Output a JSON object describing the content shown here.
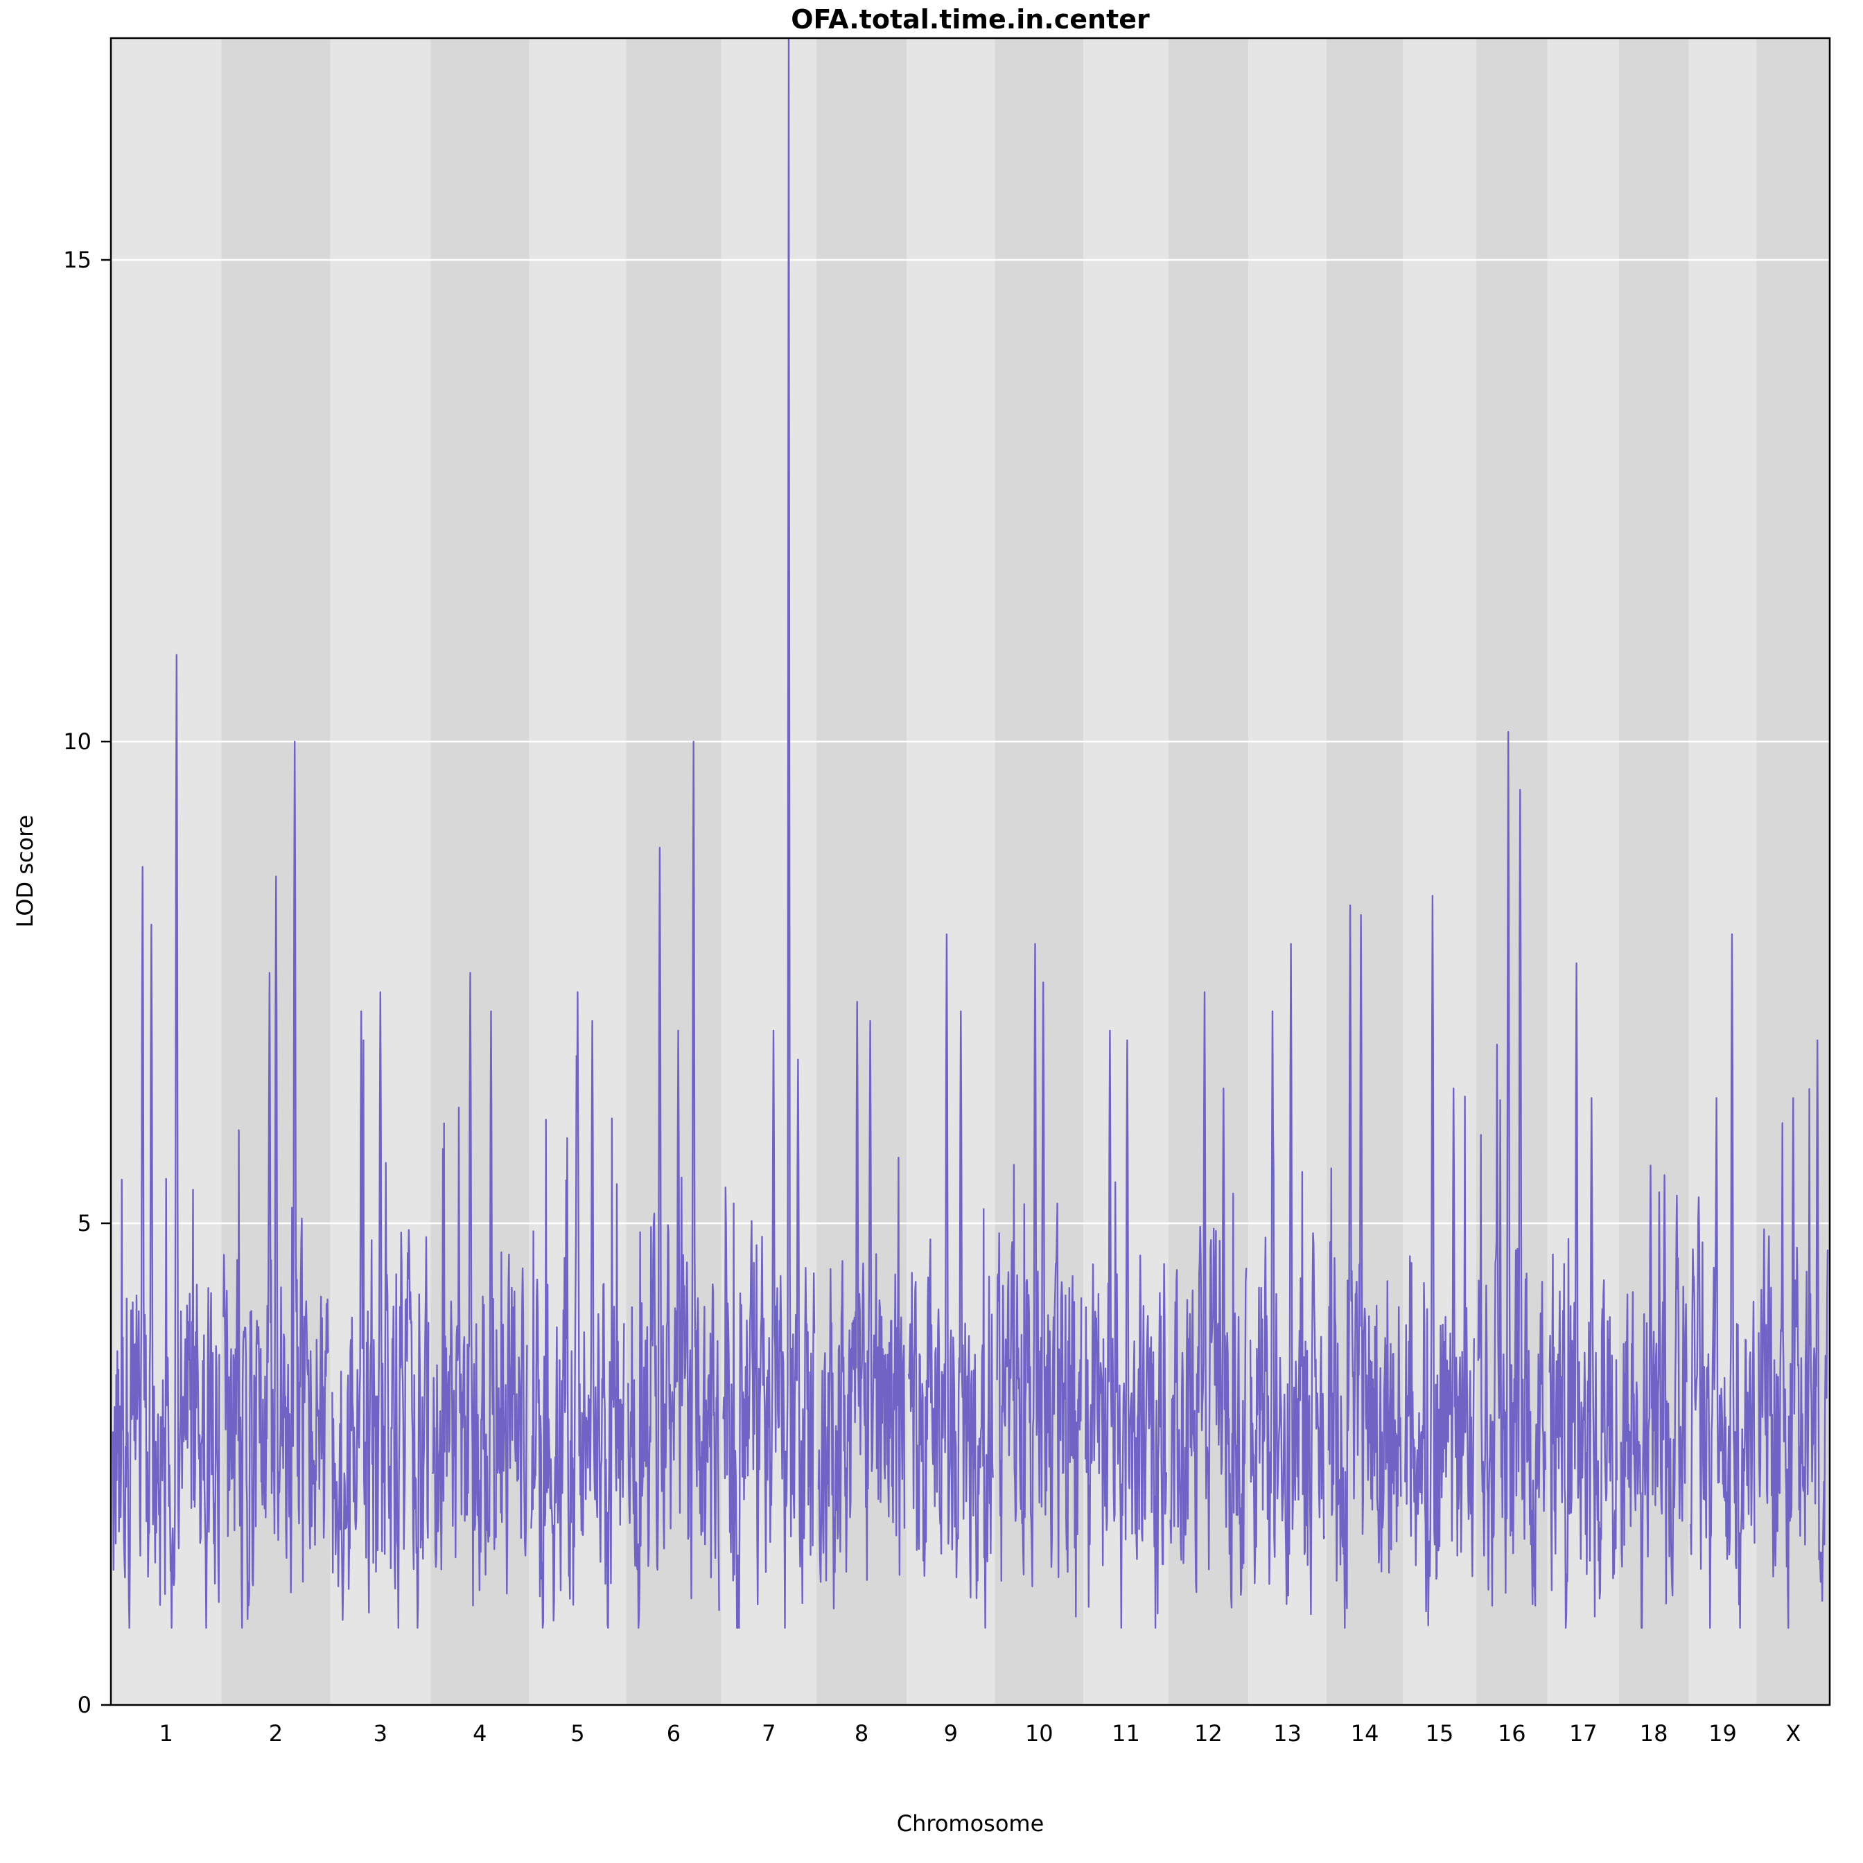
{
  "chart_data": {
    "type": "line",
    "title": "OFA.total.time.in.center",
    "xlabel": "Chromosome",
    "ylabel": "LOD score",
    "ylim": [
      0,
      17.3
    ],
    "yticks": [
      0,
      5,
      10,
      15
    ],
    "grid": "horizontal-white-lines",
    "legend": "none",
    "line_color": "#6f64c5",
    "band_colors": [
      "#e5e5e5",
      "#d8d8d8"
    ],
    "gridline_color": "#ffffff",
    "plot_background": "alternating gray bands per chromosome",
    "x_categories": [
      "1",
      "2",
      "3",
      "4",
      "5",
      "6",
      "7",
      "8",
      "9",
      "10",
      "11",
      "12",
      "13",
      "14",
      "15",
      "16",
      "17",
      "18",
      "19",
      "X"
    ],
    "baseline_noise": {
      "typical_min": 1.0,
      "typical_max": 5.5,
      "description": "dense noisy LOD trace oscillating roughly between 1 and 5.5 across all chromosomes"
    },
    "notable_peaks": [
      {
        "chr": "7",
        "lod": 17.3
      },
      {
        "chr": "1",
        "lod": 10.9
      },
      {
        "chr": "16",
        "lod": 10.1
      },
      {
        "chr": "2",
        "lod": 10.0
      },
      {
        "chr": "6",
        "lod": 10.0
      },
      {
        "chr": "16",
        "lod": 9.5
      }
    ],
    "chromosomes": [
      {
        "label": "1",
        "rel_width": 1.3,
        "seed": 101,
        "peaks": [
          {
            "pos": 0.6,
            "lod": 10.9
          },
          {
            "pos": 0.28,
            "lod": 8.7
          },
          {
            "pos": 0.36,
            "lod": 8.1
          }
        ]
      },
      {
        "label": "2",
        "rel_width": 1.28,
        "seed": 102,
        "peaks": [
          {
            "pos": 0.68,
            "lod": 10.0
          },
          {
            "pos": 0.5,
            "lod": 8.6
          },
          {
            "pos": 0.44,
            "lod": 7.6
          }
        ]
      },
      {
        "label": "3",
        "rel_width": 1.18,
        "seed": 103,
        "peaks": [
          {
            "pos": 0.5,
            "lod": 7.4
          },
          {
            "pos": 0.3,
            "lod": 7.2
          }
        ]
      },
      {
        "label": "4",
        "rel_width": 1.16,
        "seed": 104,
        "peaks": [
          {
            "pos": 0.4,
            "lod": 7.6
          },
          {
            "pos": 0.62,
            "lod": 7.2
          }
        ]
      },
      {
        "label": "5",
        "rel_width": 1.14,
        "seed": 105,
        "peaks": [
          {
            "pos": 0.5,
            "lod": 7.4
          },
          {
            "pos": 0.66,
            "lod": 7.1
          }
        ]
      },
      {
        "label": "6",
        "rel_width": 1.12,
        "seed": 106,
        "peaks": [
          {
            "pos": 0.72,
            "lod": 10.0
          },
          {
            "pos": 0.35,
            "lod": 8.9
          },
          {
            "pos": 0.55,
            "lod": 7.0
          }
        ]
      },
      {
        "label": "7",
        "rel_width": 1.12,
        "seed": 107,
        "peaks": [
          {
            "pos": 0.72,
            "lod": 17.3
          },
          {
            "pos": 0.55,
            "lod": 7.0
          },
          {
            "pos": 0.82,
            "lod": 6.7
          }
        ]
      },
      {
        "label": "8",
        "rel_width": 1.06,
        "seed": 108,
        "peaks": [
          {
            "pos": 0.45,
            "lod": 7.3
          },
          {
            "pos": 0.6,
            "lod": 7.1
          }
        ]
      },
      {
        "label": "9",
        "rel_width": 1.04,
        "seed": 109,
        "peaks": [
          {
            "pos": 0.45,
            "lod": 8.0
          },
          {
            "pos": 0.62,
            "lod": 7.2
          }
        ]
      },
      {
        "label": "10",
        "rel_width": 1.04,
        "seed": 110,
        "peaks": [
          {
            "pos": 0.45,
            "lod": 7.9
          },
          {
            "pos": 0.55,
            "lod": 7.5
          }
        ]
      },
      {
        "label": "11",
        "rel_width": 1.0,
        "seed": 111,
        "peaks": [
          {
            "pos": 0.3,
            "lod": 7.0
          },
          {
            "pos": 0.52,
            "lod": 6.9
          }
        ]
      },
      {
        "label": "12",
        "rel_width": 0.94,
        "seed": 112,
        "peaks": [
          {
            "pos": 0.45,
            "lod": 7.4
          },
          {
            "pos": 0.7,
            "lod": 6.4
          }
        ]
      },
      {
        "label": "13",
        "rel_width": 0.92,
        "seed": 113,
        "peaks": [
          {
            "pos": 0.55,
            "lod": 7.9
          },
          {
            "pos": 0.3,
            "lod": 7.2
          }
        ]
      },
      {
        "label": "14",
        "rel_width": 0.9,
        "seed": 114,
        "peaks": [
          {
            "pos": 0.3,
            "lod": 8.3
          },
          {
            "pos": 0.45,
            "lod": 8.2
          }
        ]
      },
      {
        "label": "15",
        "rel_width": 0.86,
        "seed": 115,
        "peaks": [
          {
            "pos": 0.4,
            "lod": 8.4
          },
          {
            "pos": 0.7,
            "lod": 6.4
          }
        ]
      },
      {
        "label": "16",
        "rel_width": 0.84,
        "seed": 116,
        "peaks": [
          {
            "pos": 0.45,
            "lod": 10.1
          },
          {
            "pos": 0.62,
            "lod": 9.5
          }
        ]
      },
      {
        "label": "17",
        "rel_width": 0.84,
        "seed": 117,
        "peaks": [
          {
            "pos": 0.4,
            "lod": 7.7
          },
          {
            "pos": 0.62,
            "lod": 6.3
          }
        ]
      },
      {
        "label": "18",
        "rel_width": 0.82,
        "seed": 118,
        "peaks": [
          {
            "pos": 0.45,
            "lod": 5.6
          },
          {
            "pos": 0.66,
            "lod": 5.5
          }
        ]
      },
      {
        "label": "19",
        "rel_width": 0.8,
        "seed": 119,
        "peaks": [
          {
            "pos": 0.65,
            "lod": 8.0
          },
          {
            "pos": 0.4,
            "lod": 6.3
          }
        ]
      },
      {
        "label": "X",
        "rel_width": 0.86,
        "seed": 120,
        "peaks": [
          {
            "pos": 0.85,
            "lod": 6.9
          },
          {
            "pos": 0.5,
            "lod": 6.3
          }
        ]
      }
    ]
  }
}
